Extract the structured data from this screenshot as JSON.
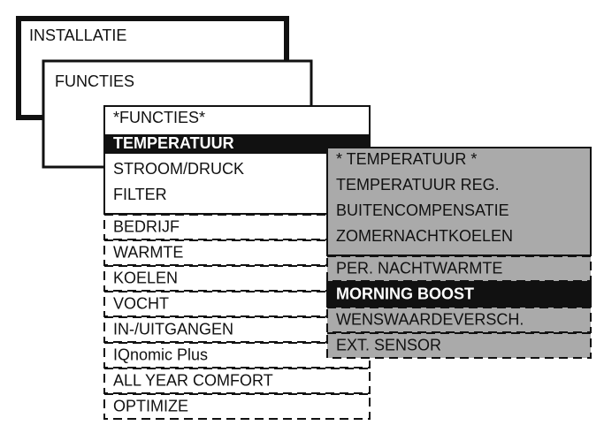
{
  "menus": [
    {
      "title": "INSTALLATIE"
    },
    {
      "title": "FUNCTIES"
    },
    {
      "items": [
        "*FUNCTIES*",
        "TEMPERATUUR",
        "STROOM/DRUCK",
        "FILTER"
      ],
      "more": [
        "BEDRIJF",
        "WARMTE",
        "KOELEN",
        "VOCHT",
        "IN-/UITGANGEN",
        "IQnomic Plus",
        "ALL YEAR COMFORT",
        "OPTIMIZE"
      ]
    },
    {
      "items": [
        "* TEMPERATUUR *",
        "TEMPERATUUR REG.",
        "BUITENCOMPENSATIE",
        "ZOMERNACHTKOELEN"
      ],
      "more": [
        "PER. NACHTWARMTE",
        "MORNING BOOST",
        "WENSWAARDEVERSCH.",
        "EXT. SENSOR"
      ]
    }
  ]
}
